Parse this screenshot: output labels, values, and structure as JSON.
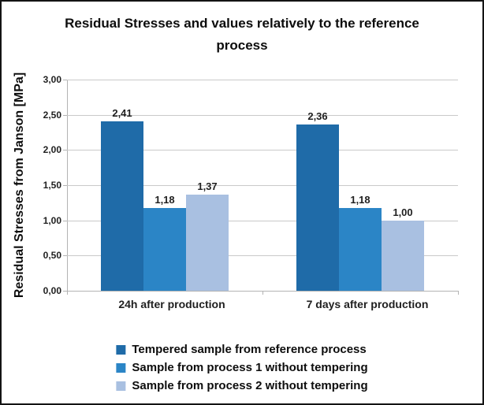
{
  "header": {
    "title_line1": "Residual Stresses and values relatively to the reference",
    "title_line2": "process"
  },
  "chart_data": {
    "type": "bar",
    "title": "Residual Stresses and values relatively to the reference process",
    "xlabel": "",
    "ylabel": "Residual Stresses from Janson [MPa]",
    "categories": [
      "24h after production",
      "7 days after production"
    ],
    "series": [
      {
        "name": "Tempered sample from reference process",
        "color": "#1f6ba8",
        "values": [
          2.41,
          2.36
        ],
        "labels": [
          "2,41",
          "2,36"
        ]
      },
      {
        "name": "Sample from process 1 without tempering",
        "color": "#2b85c6",
        "values": [
          1.18,
          1.18
        ],
        "labels": [
          "1,18",
          "1,18"
        ]
      },
      {
        "name": "Sample from process 2 without tempering",
        "color": "#a9c0e1",
        "values": [
          1.37,
          1.0
        ],
        "labels": [
          "1,37",
          "1,00"
        ]
      }
    ],
    "ylim": [
      0,
      3
    ],
    "ytick_step": 0.5,
    "ytick_labels": [
      "0,00",
      "0,50",
      "1,00",
      "1,50",
      "2,00",
      "2,50",
      "3,00"
    ],
    "grid": true,
    "legend_position": "bottom"
  }
}
